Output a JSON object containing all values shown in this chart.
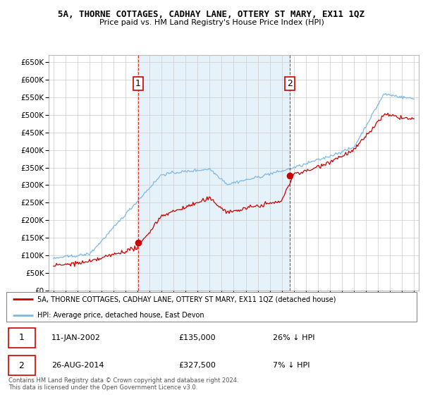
{
  "title": "5A, THORNE COTTAGES, CADHAY LANE, OTTERY ST MARY, EX11 1QZ",
  "subtitle": "Price paid vs. HM Land Registry's House Price Index (HPI)",
  "hpi_color": "#7cb8e8",
  "hpi_fill_color": "#d6eaf8",
  "price_color": "#cc0000",
  "vline_color": "#cc0000",
  "background_color": "#ffffff",
  "grid_color": "#cccccc",
  "ylim": [
    0,
    670000
  ],
  "yticks": [
    0,
    50000,
    100000,
    150000,
    200000,
    250000,
    300000,
    350000,
    400000,
    450000,
    500000,
    550000,
    600000,
    650000
  ],
  "ytick_labels": [
    "£0",
    "£50K",
    "£100K",
    "£150K",
    "£200K",
    "£250K",
    "£300K",
    "£350K",
    "£400K",
    "£450K",
    "£500K",
    "£550K",
    "£600K",
    "£650K"
  ],
  "sale1_t": 2002.03,
  "sale1_price": 135000,
  "sale1_label": "1",
  "sale2_t": 2014.65,
  "sale2_price": 327500,
  "sale2_label": "2",
  "legend_line1": "5A, THORNE COTTAGES, CADHAY LANE, OTTERY ST MARY, EX11 1QZ (detached house)",
  "legend_line2": "HPI: Average price, detached house, East Devon",
  "footer1": "Contains HM Land Registry data © Crown copyright and database right 2024.",
  "footer2": "This data is licensed under the Open Government Licence v3.0.",
  "table_row1_num": "1",
  "table_row1_date": "11-JAN-2002",
  "table_row1_price": "£135,000",
  "table_row1_hpi": "26% ↓ HPI",
  "table_row2_num": "2",
  "table_row2_date": "26-AUG-2014",
  "table_row2_price": "£327,500",
  "table_row2_hpi": "7% ↓ HPI"
}
